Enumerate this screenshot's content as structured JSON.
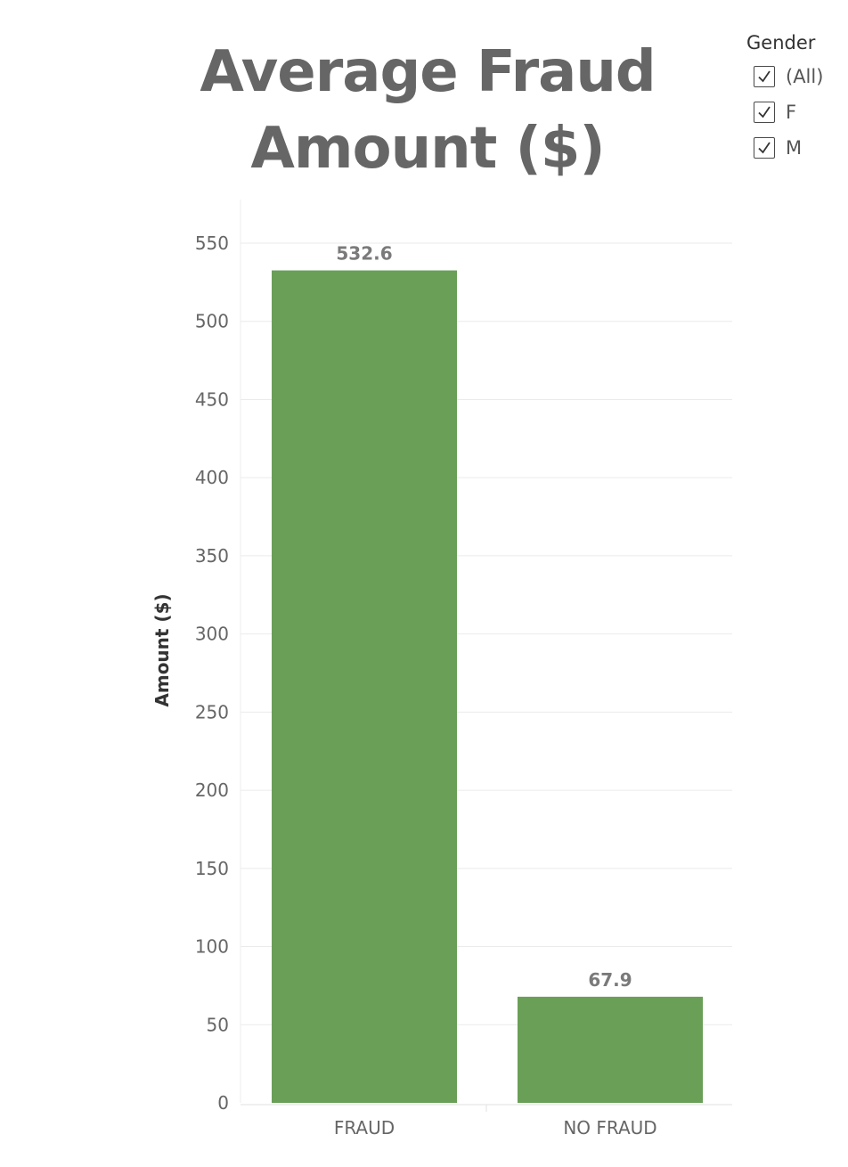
{
  "chart_data": {
    "type": "bar",
    "title_lines": [
      "Average Fraud",
      "Amount ($)"
    ],
    "categories": [
      "FRAUD",
      "NO FRAUD"
    ],
    "values": [
      532.6,
      67.9
    ],
    "value_labels": [
      "532.6",
      "67.9"
    ],
    "xlabel": "",
    "ylabel": "Amount ($)",
    "ylim": [
      0,
      550
    ],
    "yticks": [
      0,
      50,
      100,
      150,
      200,
      250,
      300,
      350,
      400,
      450,
      500,
      550
    ],
    "bar_color": "#6a9f58",
    "grid": true
  },
  "legend": {
    "title": "Gender",
    "items": [
      {
        "label": "(All)",
        "checked": true
      },
      {
        "label": "F",
        "checked": true
      },
      {
        "label": "M",
        "checked": true
      }
    ]
  }
}
